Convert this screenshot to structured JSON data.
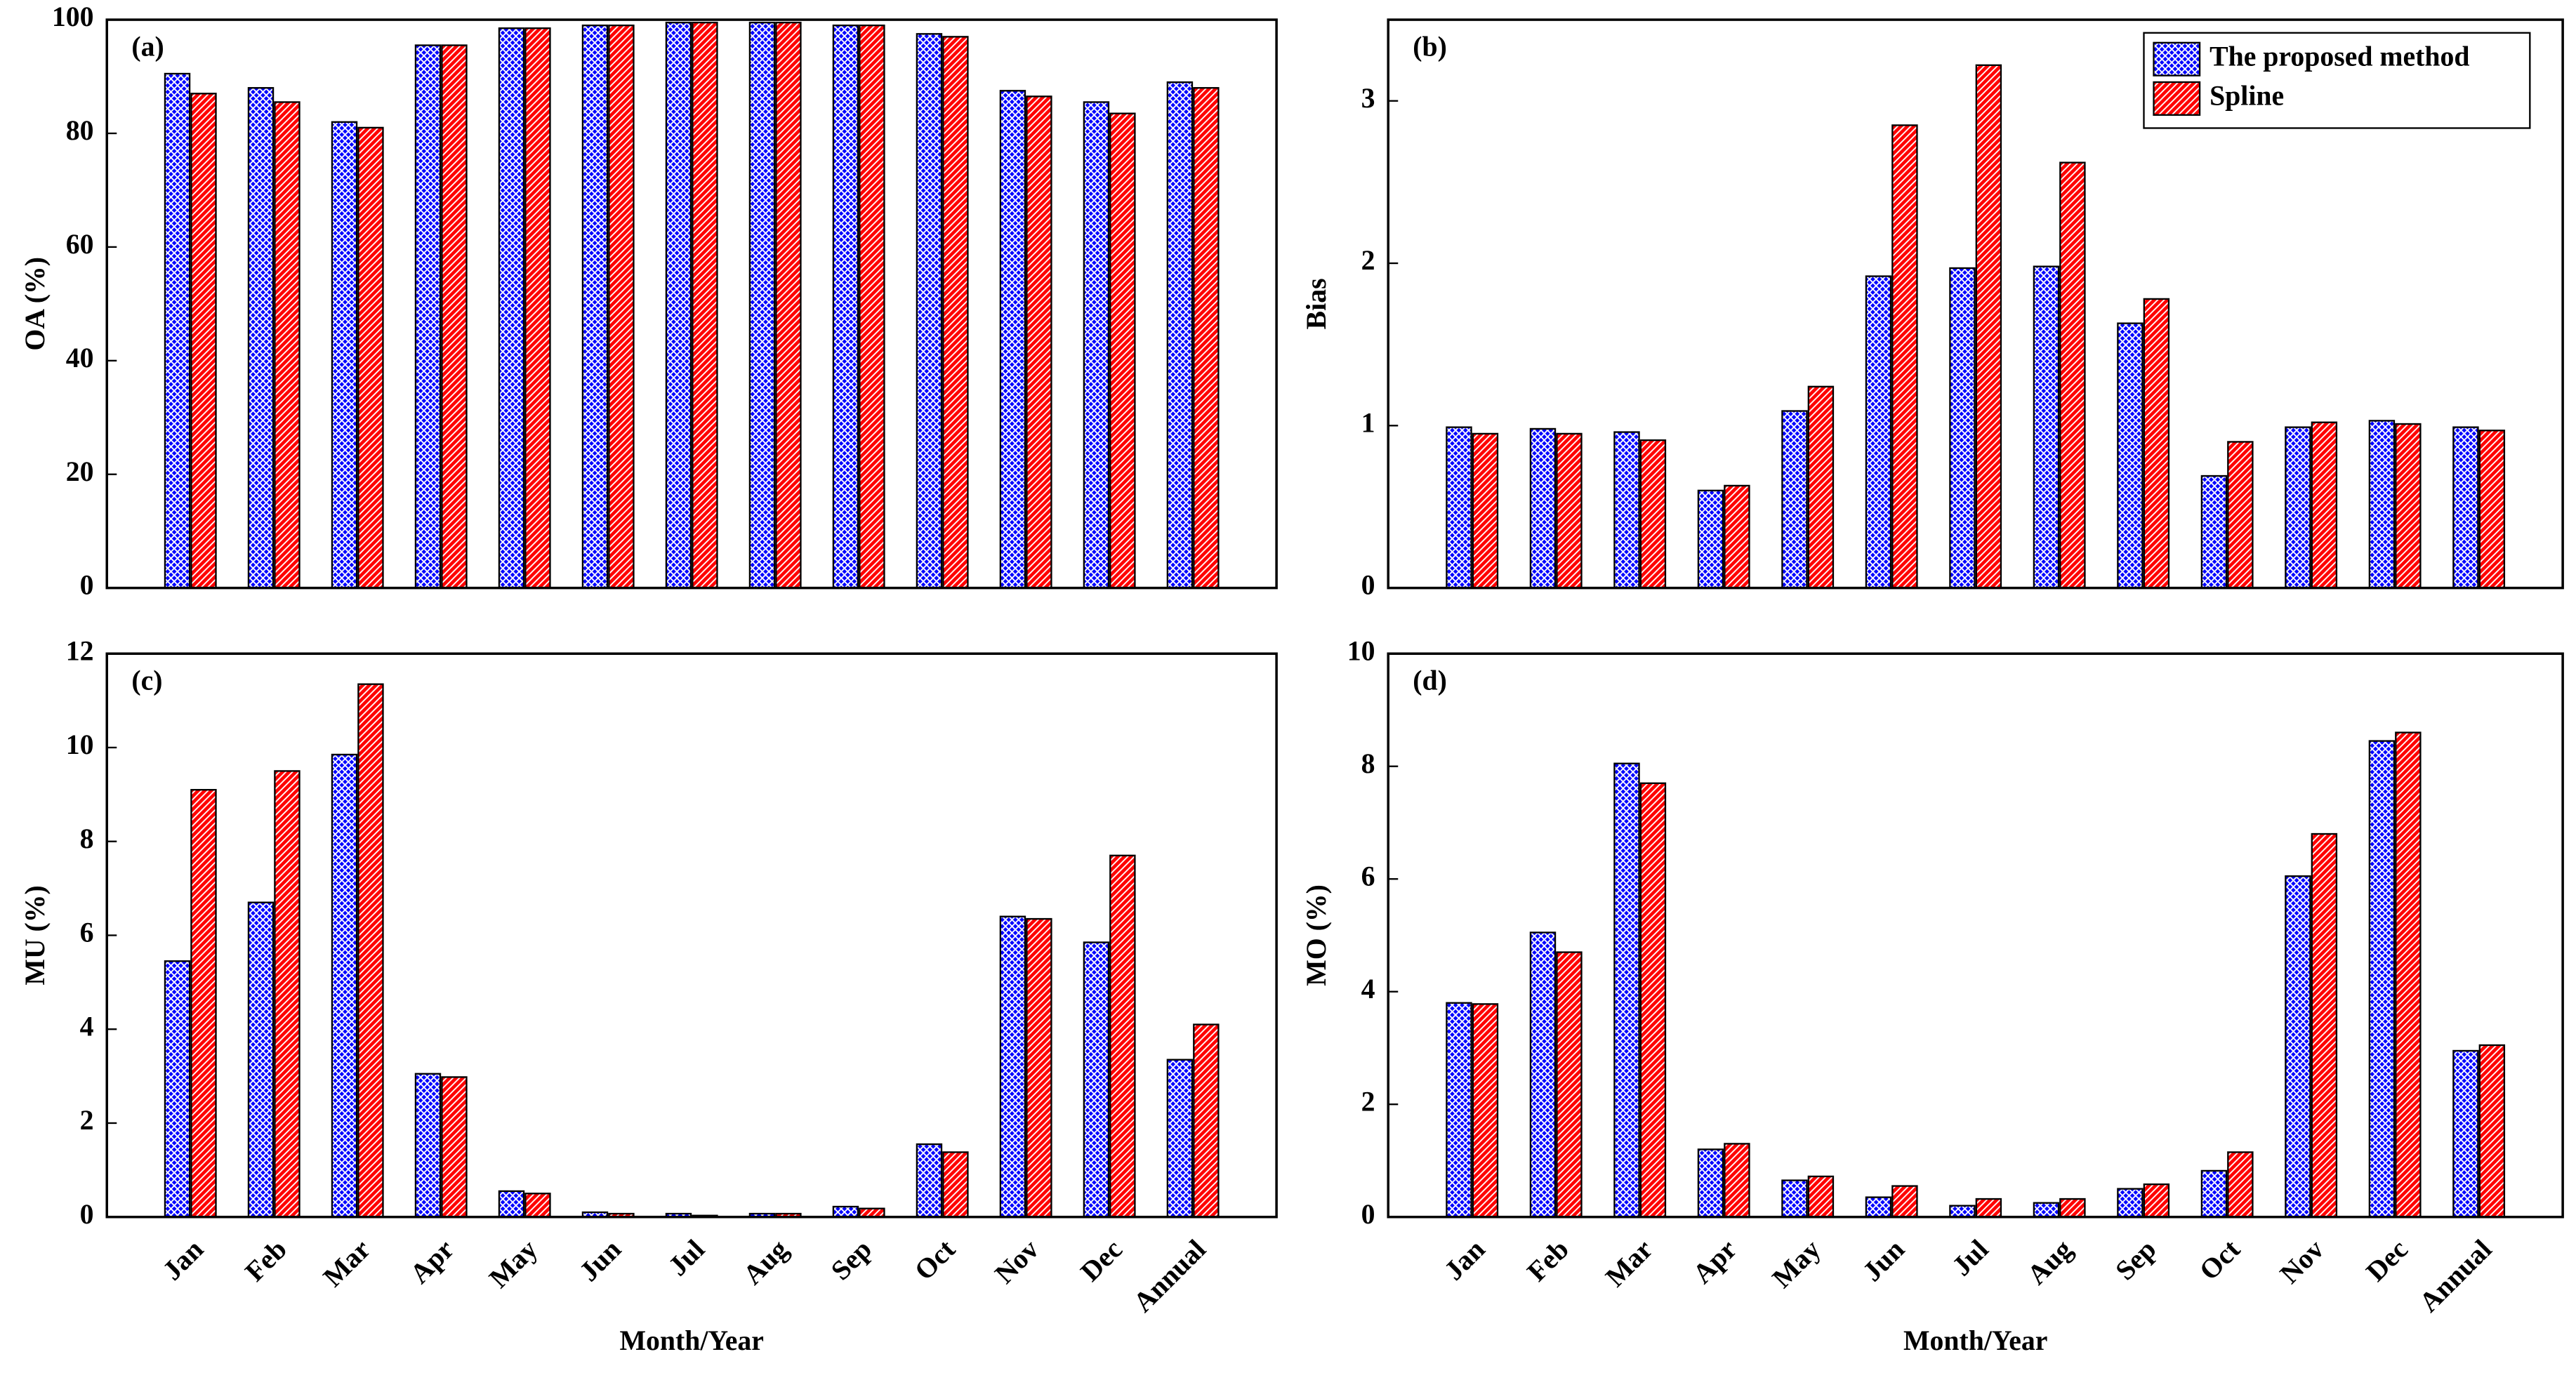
{
  "chart_data": [
    {
      "type": "bar",
      "panel": "(a)",
      "ylabel": "OA (%)",
      "ylim": [
        0,
        100
      ],
      "yticks": [
        0,
        20,
        40,
        60,
        80,
        100
      ],
      "series": [
        {
          "color": "#0000ff",
          "values": [
            90.5,
            88,
            82,
            95.5,
            98.5,
            99,
            99.5,
            99.5,
            99,
            97.5,
            87.5,
            85.5,
            89
          ]
        },
        {
          "color": "#ff0000",
          "values": [
            87,
            85.5,
            81,
            95.5,
            98.5,
            99,
            99.5,
            99.5,
            99,
            97,
            86.5,
            83.5,
            88
          ]
        }
      ]
    },
    {
      "type": "bar",
      "panel": "(b)",
      "ylabel": "Bias",
      "ylim": [
        0,
        3.5
      ],
      "yticks": [
        0,
        1,
        2,
        3
      ],
      "legend": "upper right",
      "series": [
        {
          "name": "The proposed method",
          "color": "#0000ff",
          "values": [
            0.99,
            0.98,
            0.96,
            0.6,
            1.09,
            1.92,
            1.97,
            1.98,
            1.63,
            0.69,
            0.99,
            1.03,
            0.99
          ]
        },
        {
          "name": "Spline",
          "color": "#ff0000",
          "values": [
            0.95,
            0.95,
            0.91,
            0.63,
            1.24,
            2.85,
            3.22,
            2.62,
            1.78,
            0.9,
            1.02,
            1.01,
            0.97
          ]
        }
      ]
    },
    {
      "type": "bar",
      "panel": "(c)",
      "ylabel": "MU (%)",
      "xlabel": "Month/Year",
      "ylim": [
        0,
        12
      ],
      "yticks": [
        0,
        2,
        4,
        6,
        8,
        10,
        12
      ],
      "categories": [
        "Jan",
        "Feb",
        "Mar",
        "Apr",
        "May",
        "Jun",
        "Jul",
        "Aug",
        "Sep",
        "Oct",
        "Nov",
        "Dec",
        "Annual"
      ],
      "series": [
        {
          "color": "#0000ff",
          "values": [
            5.45,
            6.7,
            9.85,
            3.05,
            0.55,
            0.1,
            0.07,
            0.07,
            0.22,
            1.55,
            6.4,
            5.85,
            3.35
          ]
        },
        {
          "color": "#ff0000",
          "values": [
            9.1,
            9.5,
            11.35,
            2.98,
            0.5,
            0.07,
            0.03,
            0.07,
            0.18,
            1.38,
            6.35,
            7.7,
            4.1
          ]
        }
      ]
    },
    {
      "type": "bar",
      "panel": "(d)",
      "ylabel": "MO (%)",
      "xlabel": "Month/Year",
      "ylim": [
        0,
        10
      ],
      "yticks": [
        0,
        2,
        4,
        6,
        8,
        10
      ],
      "categories": [
        "Jan",
        "Feb",
        "Mar",
        "Apr",
        "May",
        "Jun",
        "Jul",
        "Aug",
        "Sep",
        "Oct",
        "Nov",
        "Dec",
        "Annual"
      ],
      "series": [
        {
          "color": "#0000ff",
          "values": [
            3.8,
            5.05,
            8.05,
            1.2,
            0.65,
            0.35,
            0.2,
            0.25,
            0.5,
            0.82,
            6.05,
            8.45,
            2.95
          ]
        },
        {
          "color": "#ff0000",
          "values": [
            3.78,
            4.7,
            7.7,
            1.3,
            0.72,
            0.55,
            0.32,
            0.32,
            0.58,
            1.15,
            6.8,
            8.6,
            3.05
          ]
        }
      ]
    }
  ]
}
